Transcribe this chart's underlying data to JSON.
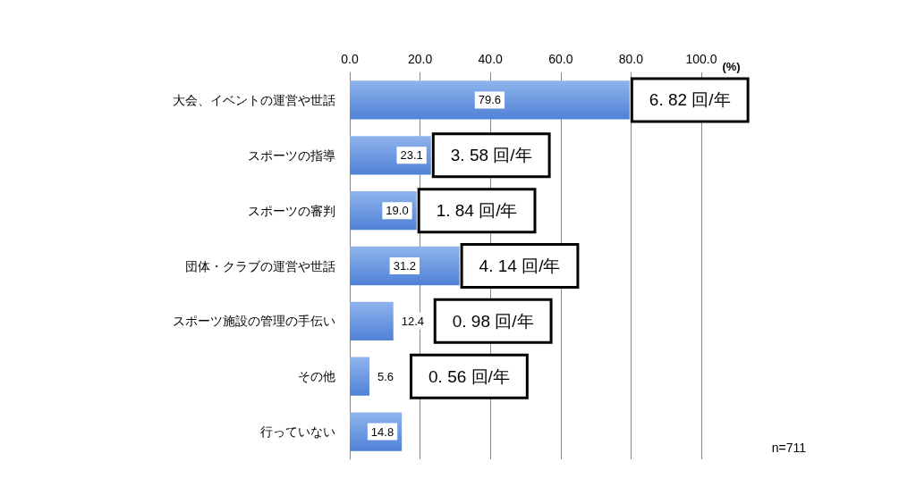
{
  "chart_data": {
    "type": "bar",
    "orientation": "horizontal",
    "xlabel": "(%)",
    "categories": [
      "大会、イベントの運営や世話",
      "スポーツの指導",
      "スポーツの審判",
      "団体・クラブの運営や世話",
      "スポーツ施設の管理の手伝い",
      "その他",
      "行っていない"
    ],
    "values": [
      79.6,
      23.1,
      19.0,
      31.2,
      12.4,
      5.6,
      14.8
    ],
    "value_labels": [
      "79.6",
      "23.1",
      "19.0",
      "31.2",
      "12.4",
      "5.6",
      "14.8"
    ],
    "color": "#4f81d6",
    "xlim": [
      0,
      100
    ],
    "xticks": [
      {
        "value": 0,
        "label": "0.0"
      },
      {
        "value": 20,
        "label": "20.0"
      },
      {
        "value": 40,
        "label": "40.0"
      },
      {
        "value": 60,
        "label": "60.0"
      },
      {
        "value": 80,
        "label": "80.0"
      },
      {
        "value": 100,
        "label": "100.0"
      }
    ],
    "grid": "x",
    "annotations": [
      {
        "text": "6. 82 回/年",
        "x": 79.6,
        "y": "大会、イベントの運営や世話"
      },
      {
        "text": "3. 58 回/年",
        "x": 23.1,
        "y": "スポーツの指導"
      },
      {
        "text": "1. 84 回/年",
        "x": 19.0,
        "y": "スポーツの審判"
      },
      {
        "text": "4. 14 回/年",
        "x": 31.2,
        "y": "団体・クラブの運営や世話"
      },
      "0. 98 回/年",
      "0. 56 回/年",
      "n=711"
    ]
  }
}
